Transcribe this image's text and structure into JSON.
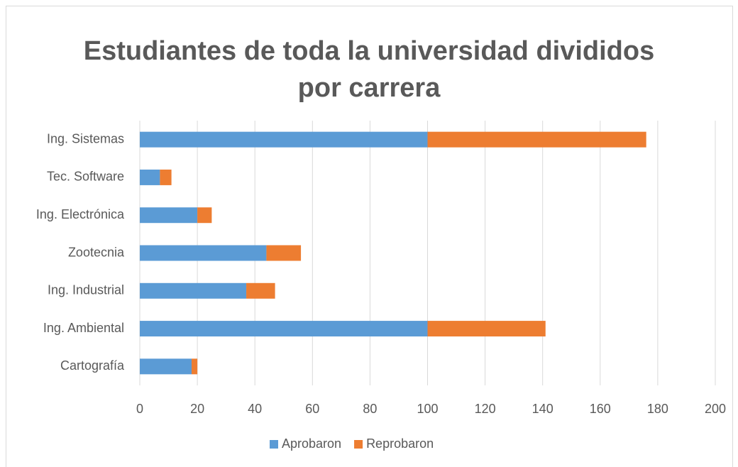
{
  "chart_data": {
    "type": "stacked-barh",
    "title": "Estudiantes de toda la universidad divididos por carrera",
    "categories": [
      "Ing. Sistemas",
      "Tec. Software",
      "Ing. Electrónica",
      "Zootecnia",
      "Ing. Industrial",
      "Ing. Ambiental",
      "Cartografía"
    ],
    "series": [
      {
        "name": "Aprobaron",
        "color": "#5b9bd5",
        "values": [
          100,
          7,
          20,
          44,
          37,
          100,
          18
        ]
      },
      {
        "name": "Reprobaron",
        "color": "#ed7d31",
        "values": [
          76,
          4,
          5,
          12,
          10,
          41,
          2
        ]
      }
    ],
    "xlim": [
      0,
      200
    ],
    "xticks": [
      0,
      20,
      40,
      60,
      80,
      100,
      120,
      140,
      160,
      180,
      200
    ],
    "grid": true,
    "legend": "bottom"
  }
}
